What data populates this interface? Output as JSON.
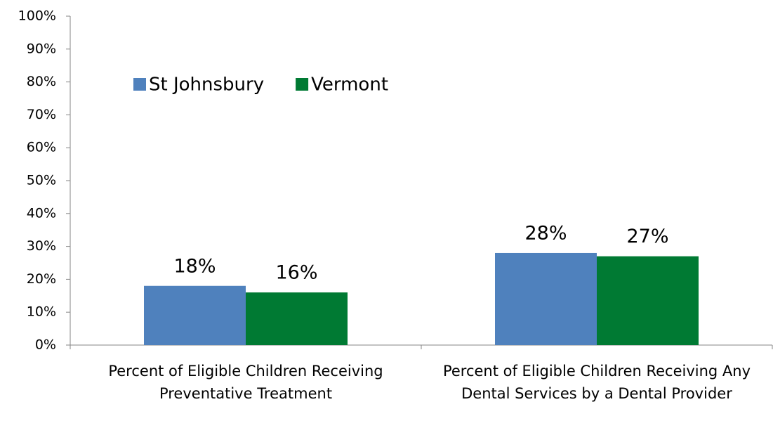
{
  "chart_data": {
    "type": "bar",
    "categories": [
      "Percent of Eligible Children Receiving Preventative Treatment",
      "Percent of Eligible Children Receiving Any Dental Services by a Dental Provider"
    ],
    "series": [
      {
        "name": "St Johnsbury",
        "color": "#4f81bd",
        "values": [
          18,
          28
        ],
        "value_labels": [
          "18%",
          "28%"
        ]
      },
      {
        "name": "Vermont",
        "color": "#007a33",
        "values": [
          16,
          27
        ],
        "value_labels": [
          "16%",
          "27%"
        ]
      }
    ],
    "ylim": [
      0,
      100
    ],
    "yticks": [
      {
        "value": 0,
        "label": "0%"
      },
      {
        "value": 10,
        "label": "10%"
      },
      {
        "value": 20,
        "label": "20%"
      },
      {
        "value": 30,
        "label": "30%"
      },
      {
        "value": 40,
        "label": "40%"
      },
      {
        "value": 50,
        "label": "50%"
      },
      {
        "value": 60,
        "label": "60%"
      },
      {
        "value": 70,
        "label": "70%"
      },
      {
        "value": 80,
        "label": "80%"
      },
      {
        "value": 90,
        "label": "90%"
      },
      {
        "value": 100,
        "label": "100%"
      }
    ],
    "grid": false,
    "legend": "upper-left"
  }
}
